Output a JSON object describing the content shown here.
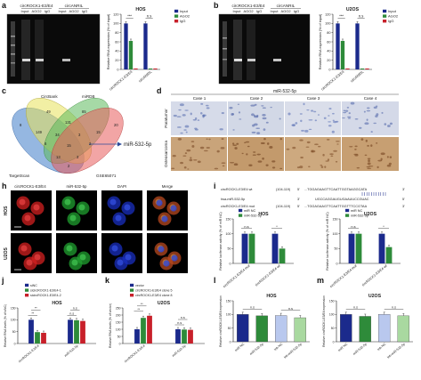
{
  "colors": {
    "input": "#1b2a8c",
    "ago2": "#2e8b3a",
    "igg": "#c8202a",
    "light_blue": "#b9c8ee",
    "light_green": "#a9d9a0"
  },
  "panel_a": {
    "label": "a",
    "gel_lanes": [
      "Input",
      "AGO2",
      "IgG",
      "Input",
      "AGO2",
      "IgG"
    ],
    "gel_groups": [
      "circROCK1-E3/E4",
      "circANRIL"
    ]
  },
  "panel_b": {
    "label": "b",
    "gel_lanes": [
      "Input",
      "AGO2",
      "IgG",
      "Input",
      "AGO2",
      "IgG"
    ],
    "gel_groups": [
      "circROCK1-E3/E4",
      "circANRIL"
    ]
  },
  "panel_c": {
    "label": "c",
    "sets": [
      "CircBank",
      "miRDB",
      "TargetScan",
      "GSE65071"
    ],
    "regions": [
      "8",
      "49",
      "85",
      "20",
      "149",
      "131",
      "15",
      "6",
      "34",
      "3",
      "2",
      "15",
      "13",
      "3",
      "2"
    ],
    "result": "miR-532-5p"
  },
  "panel_d": {
    "label": "d",
    "title": "miR-532-5p",
    "cases": [
      "Case 1",
      "Case 2",
      "Case 3",
      "Case 4"
    ],
    "rows": [
      "Paratumor",
      "Osteosarcoma"
    ]
  },
  "panel_h": {
    "label": "h",
    "cols": [
      "circROCK1-E3/E4",
      "miR-532-5p",
      "DAPI",
      "Merge"
    ],
    "rows": [
      "HOS",
      "U2OS"
    ]
  },
  "panel_i": {
    "label": "i",
    "seqs": [
      {
        "name": "circROCK1-E3/E4 wt",
        "pos": "(104-119)",
        "s5": "5'",
        "seq": "...TGGAGAAGTTCAATTGGTAAGGCATA",
        "s3": "3'"
      },
      {
        "name": "hsa-miR-532-5p",
        "pos": "",
        "s5": "3'",
        "seq": "UGCCAGGAUGUGAAUUCCGUAC",
        "s3": "5'"
      },
      {
        "name": "circROCK1-E3/E4 mut",
        "pos": "(104-119)",
        "s5": "5'",
        "seq": "...TGGAGAAGTTCAATTGGTTTCCGTAA",
        "s3": "3'"
      }
    ]
  },
  "chart_data": [
    {
      "panel": "a",
      "type": "bar",
      "title": "HOS",
      "ylabel": "Relative RNA expression (% of input)",
      "ylim": [
        0,
        120
      ],
      "yticks": [
        "0",
        "20",
        "40",
        "60",
        "80",
        "100",
        "120"
      ],
      "categories": [
        "circROCK1-E3/E4",
        "circANRIL"
      ],
      "series": [
        {
          "name": "Input",
          "values": [
            100,
            100
          ]
        },
        {
          "name": "AGO2",
          "values": [
            62,
            2
          ]
        },
        {
          "name": "IgG",
          "values": [
            2,
            2
          ]
        }
      ],
      "annotations": [
        "***",
        "n.s"
      ],
      "legend": "right"
    },
    {
      "panel": "b",
      "type": "bar",
      "title": "U2OS",
      "ylabel": "Relative RNA expression (% of input)",
      "ylim": [
        0,
        120
      ],
      "yticks": [
        "0",
        "20",
        "40",
        "60",
        "80",
        "100",
        "120"
      ],
      "categories": [
        "circROCK1-E3/E4",
        "circANRIL"
      ],
      "series": [
        {
          "name": "Input",
          "values": [
            100,
            100
          ]
        },
        {
          "name": "AGO2",
          "values": [
            62,
            2
          ]
        },
        {
          "name": "IgG",
          "values": [
            2,
            2
          ]
        }
      ],
      "annotations": [
        "***",
        "n.s"
      ],
      "legend": "right"
    },
    {
      "panel": "i-HOS",
      "type": "bar",
      "title": "HOS",
      "ylabel": "Relative luciferase activity (% of miR NC)",
      "ylim": [
        0,
        150
      ],
      "yticks": [
        "0",
        "50",
        "100",
        "150"
      ],
      "categories": [
        "circROCK1-E3/E4 mut",
        "circROCK1-E3/E4 wt"
      ],
      "series": [
        {
          "name": "miR NC",
          "values": [
            100,
            100
          ]
        },
        {
          "name": "miR-532-5p",
          "values": [
            100,
            50
          ]
        }
      ],
      "annotations": [
        "n.s",
        "*"
      ],
      "legend": "top-left"
    },
    {
      "panel": "i-U2OS",
      "type": "bar",
      "title": "U2OS",
      "ylabel": "Relative luciferase activity (% of miR NC)",
      "ylim": [
        0,
        150
      ],
      "yticks": [
        "0",
        "50",
        "100",
        "150"
      ],
      "categories": [
        "circROCK1-E3/E4 mut",
        "circROCK1-E3/E4 wt"
      ],
      "series": [
        {
          "name": "miR NC",
          "values": [
            100,
            100
          ]
        },
        {
          "name": "miR-532-5p",
          "values": [
            100,
            55
          ]
        }
      ],
      "annotations": [
        "n.s",
        "*"
      ],
      "legend": "top-left"
    },
    {
      "panel": "j",
      "type": "bar",
      "title": "HOS",
      "ylabel": "Relative RNA levels (% of siNC)",
      "ylim": [
        0,
        150
      ],
      "yticks": [
        "0",
        "50",
        "100",
        "150"
      ],
      "categories": [
        "circROCK1-E3/E4",
        "miR-532-5p"
      ],
      "series": [
        {
          "name": "siNC",
          "values": [
            100,
            100
          ]
        },
        {
          "name": "sicircROCK1-E3/E4-1",
          "values": [
            48,
            98
          ]
        },
        {
          "name": "sicircROCK1-E3/E4-2",
          "values": [
            45,
            95
          ]
        }
      ],
      "annotations": [
        "**",
        "**",
        "n.s",
        "n.s"
      ],
      "legend": "top"
    },
    {
      "panel": "k",
      "type": "bar",
      "title": "U2OS",
      "ylabel": "Relative RNA levels (% of vector)",
      "ylim": [
        0,
        250
      ],
      "yticks": [
        "0",
        "50",
        "100",
        "150",
        "200",
        "250"
      ],
      "categories": [
        "circROCK1-E3/E4",
        "miR-532-5p"
      ],
      "series": [
        {
          "name": "vector",
          "values": [
            100,
            100
          ]
        },
        {
          "name": "circROCK1-E3/E4 clone 5",
          "values": [
            180,
            98
          ]
        },
        {
          "name": "circROCK1-E3/E4 clone 8",
          "values": [
            195,
            96
          ]
        }
      ],
      "annotations": [
        "**",
        "**",
        "n.s",
        "n.s"
      ],
      "legend": "top"
    },
    {
      "panel": "l",
      "type": "bar",
      "title": "HOS",
      "ylabel": "Relative circROCK1-E3/E4 expression",
      "ylim": [
        0,
        150
      ],
      "yticks": [
        "0",
        "50",
        "100",
        "150"
      ],
      "categories": [
        "miR NC",
        "miR-532-5p",
        "Inh NC",
        "Inh-miR-532-5p"
      ],
      "values": [
        100,
        95,
        96,
        88
      ],
      "annotations": [
        "n.s",
        "n.s"
      ]
    },
    {
      "panel": "m",
      "type": "bar",
      "title": "U2OS",
      "ylabel": "Relative circROCK1-E3/E4 expression",
      "ylim": [
        0,
        150
      ],
      "yticks": [
        "0",
        "50",
        "100",
        "150"
      ],
      "categories": [
        "miR NC",
        "miR-532-5p",
        "Inh NC",
        "Inh-miR-532-5p"
      ],
      "values": [
        100,
        93,
        100,
        95
      ],
      "annotations": [
        "n.s",
        "n.s"
      ]
    }
  ]
}
